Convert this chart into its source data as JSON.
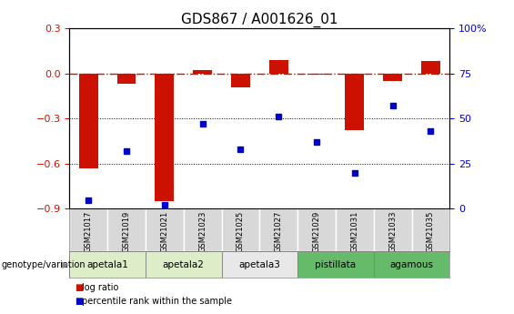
{
  "title": "GDS867 / A001626_01",
  "samples": [
    "GSM21017",
    "GSM21019",
    "GSM21021",
    "GSM21023",
    "GSM21025",
    "GSM21027",
    "GSM21029",
    "GSM21031",
    "GSM21033",
    "GSM21035"
  ],
  "log_ratio": [
    -0.63,
    -0.07,
    -0.85,
    0.02,
    -0.09,
    0.09,
    -0.01,
    -0.38,
    -0.05,
    0.08
  ],
  "percentile_rank": [
    5,
    32,
    2,
    47,
    33,
    51,
    37,
    20,
    57,
    43
  ],
  "groups": [
    {
      "label": "apetala1",
      "samples": [
        0,
        1
      ],
      "color": "#dcedc8"
    },
    {
      "label": "apetala2",
      "samples": [
        2,
        3
      ],
      "color": "#dcedc8"
    },
    {
      "label": "apetala3",
      "samples": [
        4,
        5
      ],
      "color": "#e8e8e8"
    },
    {
      "label": "pistillata",
      "samples": [
        6,
        7
      ],
      "color": "#66bb6a"
    },
    {
      "label": "agamous",
      "samples": [
        8,
        9
      ],
      "color": "#66bb6a"
    }
  ],
  "ylim_left": [
    -0.9,
    0.3
  ],
  "ylim_right": [
    0,
    100
  ],
  "yticks_left": [
    -0.9,
    -0.6,
    -0.3,
    0.0,
    0.3
  ],
  "yticks_right": [
    0,
    25,
    50,
    75,
    100
  ],
  "bar_color": "#cc1100",
  "dot_color": "#0000cc",
  "hline_color": "#cc1100",
  "dotted_lines": [
    -0.3,
    -0.6
  ],
  "legend_bar_label": "log ratio",
  "legend_dot_label": "percentile rank within the sample",
  "genotype_label": "genotype/variation",
  "title_fontsize": 11,
  "tick_fontsize": 8
}
